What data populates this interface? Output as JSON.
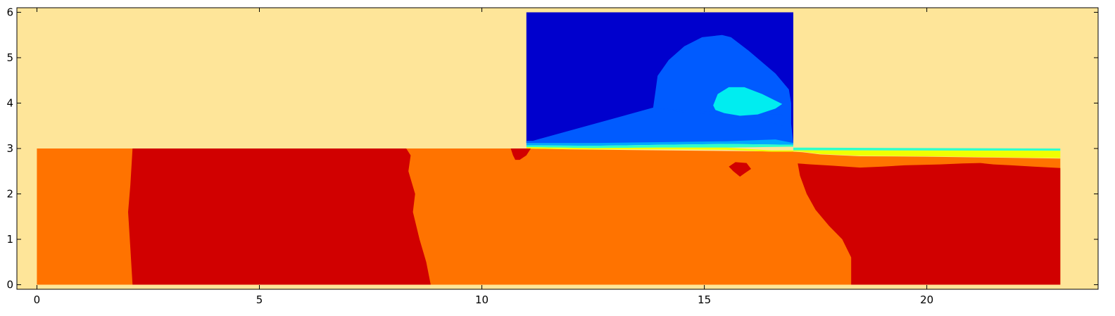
{
  "chart_data": {
    "type": "heatmap",
    "title": "",
    "xlabel": "",
    "ylabel": "",
    "xlim": [
      -0.45,
      23.85
    ],
    "ylim": [
      -0.1,
      6.1
    ],
    "x_ticks": [
      0,
      5,
      10,
      15,
      20
    ],
    "x_tick_labels": [
      "0",
      "5",
      "10",
      "15",
      "20"
    ],
    "y_ticks": [
      0,
      1,
      2,
      3,
      4,
      5,
      6
    ],
    "y_tick_labels": [
      "0",
      "1",
      "2",
      "3",
      "4",
      "5",
      "6"
    ],
    "grid": false,
    "legend": "none",
    "background_color": "#fee599",
    "regions": [
      {
        "name": "lower-layer-orange",
        "color": "#ff7300",
        "points": [
          [
            0,
            0
          ],
          [
            23,
            0
          ],
          [
            23,
            2.78
          ],
          [
            21.5,
            2.8
          ],
          [
            20,
            2.82
          ],
          [
            18.5,
            2.83
          ],
          [
            17.6,
            2.87
          ],
          [
            17.2,
            2.92
          ],
          [
            17.0,
            2.93
          ],
          [
            15,
            2.95
          ],
          [
            12,
            2.98
          ],
          [
            11.0,
            3.0
          ],
          [
            0,
            3.0
          ]
        ]
      },
      {
        "name": "left-red-zone",
        "color": "#d10000",
        "points": [
          [
            2.15,
            0
          ],
          [
            8.85,
            0
          ],
          [
            8.75,
            0.5
          ],
          [
            8.6,
            1.0
          ],
          [
            8.45,
            1.6
          ],
          [
            8.5,
            2.0
          ],
          [
            8.35,
            2.5
          ],
          [
            8.4,
            2.85
          ],
          [
            8.3,
            3.0
          ],
          [
            2.15,
            3.0
          ],
          [
            2.1,
            2.2
          ],
          [
            2.05,
            1.6
          ],
          [
            2.1,
            0.8
          ]
        ]
      },
      {
        "name": "right-red-zone",
        "color": "#d10000",
        "points": [
          [
            18.3,
            0
          ],
          [
            23,
            0
          ],
          [
            23,
            2.57
          ],
          [
            22.4,
            2.6
          ],
          [
            21.9,
            2.63
          ],
          [
            21.5,
            2.65
          ],
          [
            21.2,
            2.68
          ],
          [
            20.8,
            2.67
          ],
          [
            20.3,
            2.65
          ],
          [
            19.5,
            2.63
          ],
          [
            19.0,
            2.6
          ],
          [
            18.5,
            2.58
          ],
          [
            17.9,
            2.62
          ],
          [
            17.4,
            2.65
          ],
          [
            17.1,
            2.67
          ],
          [
            17.15,
            2.4
          ],
          [
            17.3,
            2.0
          ],
          [
            17.5,
            1.65
          ],
          [
            17.8,
            1.3
          ],
          [
            18.1,
            1.0
          ],
          [
            18.3,
            0.6
          ]
        ]
      },
      {
        "name": "red-blob-left",
        "color": "#d10000",
        "points": [
          [
            10.65,
            3.0
          ],
          [
            11.1,
            3.0
          ],
          [
            11.0,
            2.85
          ],
          [
            10.85,
            2.75
          ],
          [
            10.75,
            2.75
          ],
          [
            10.7,
            2.85
          ]
        ]
      },
      {
        "name": "red-blob-right",
        "color": "#d10000",
        "points": [
          [
            15.7,
            2.7
          ],
          [
            15.95,
            2.68
          ],
          [
            16.05,
            2.55
          ],
          [
            15.9,
            2.45
          ],
          [
            15.8,
            2.38
          ],
          [
            15.65,
            2.5
          ],
          [
            15.55,
            2.6
          ]
        ]
      },
      {
        "name": "right-cyan-band",
        "color": "#2fffc9",
        "points": [
          [
            17.0,
            3.02
          ],
          [
            23,
            3.0
          ],
          [
            23,
            2.95
          ],
          [
            17.0,
            2.96
          ]
        ]
      },
      {
        "name": "right-yellow-band",
        "color": "#f0ff00",
        "points": [
          [
            17.0,
            2.96
          ],
          [
            23,
            2.95
          ],
          [
            23,
            2.79
          ],
          [
            21.5,
            2.81
          ],
          [
            20,
            2.83
          ],
          [
            18.5,
            2.84
          ],
          [
            17.6,
            2.88
          ],
          [
            17.2,
            2.93
          ],
          [
            17.0,
            2.94
          ]
        ]
      },
      {
        "name": "block-dark-blue",
        "color": "#0000cd",
        "points": [
          [
            11.0,
            3.12
          ],
          [
            17.0,
            3.12
          ],
          [
            17.0,
            6.0
          ],
          [
            11.0,
            6.0
          ]
        ]
      },
      {
        "name": "block-medium-blue",
        "color": "#005bff",
        "points": [
          [
            13.85,
            3.9
          ],
          [
            13.9,
            4.25
          ],
          [
            13.95,
            4.6
          ],
          [
            14.2,
            4.95
          ],
          [
            14.55,
            5.25
          ],
          [
            14.95,
            5.45
          ],
          [
            15.4,
            5.5
          ],
          [
            15.6,
            5.45
          ],
          [
            16.0,
            5.15
          ],
          [
            16.6,
            4.65
          ],
          [
            16.9,
            4.3
          ],
          [
            16.95,
            4.0
          ],
          [
            16.95,
            3.55
          ],
          [
            17.0,
            3.12
          ],
          [
            11.0,
            3.12
          ],
          [
            11.0,
            3.17
          ],
          [
            12.0,
            3.18
          ],
          [
            13.5,
            3.23
          ],
          [
            15.0,
            3.35
          ],
          [
            16.4,
            3.38
          ],
          [
            16.4,
            3.28
          ],
          [
            15.0,
            3.28
          ],
          [
            13.5,
            3.2
          ],
          [
            12.0,
            3.14
          ],
          [
            11.0,
            3.13
          ]
        ]
      },
      {
        "name": "block-medium-blue-upper",
        "color": "#005bff",
        "points": [
          [
            13.85,
            3.9
          ],
          [
            14.5,
            3.8
          ],
          [
            15.5,
            3.72
          ],
          [
            16.4,
            3.6
          ],
          [
            16.75,
            3.5
          ],
          [
            16.8,
            3.6
          ],
          [
            16.75,
            3.75
          ],
          [
            16.2,
            3.75
          ],
          [
            15.0,
            3.82
          ],
          [
            14.0,
            3.88
          ]
        ]
      },
      {
        "name": "block-cyan-eddy",
        "color": "#00edf0",
        "points": [
          [
            15.2,
            3.95
          ],
          [
            15.3,
            4.2
          ],
          [
            15.55,
            4.35
          ],
          [
            15.9,
            4.35
          ],
          [
            16.3,
            4.2
          ],
          [
            16.75,
            3.98
          ],
          [
            16.6,
            3.88
          ],
          [
            16.2,
            3.75
          ],
          [
            15.8,
            3.72
          ],
          [
            15.45,
            3.78
          ],
          [
            15.25,
            3.85
          ]
        ]
      },
      {
        "name": "block-light-blue-band",
        "color": "#00a8ff",
        "points": [
          [
            11.0,
            3.12
          ],
          [
            12.5,
            3.12
          ],
          [
            14.0,
            3.14
          ],
          [
            15.5,
            3.16
          ],
          [
            16.6,
            3.2
          ],
          [
            17.0,
            3.12
          ],
          [
            17.0,
            3.08
          ],
          [
            15.5,
            3.1
          ],
          [
            14.0,
            3.08
          ],
          [
            12.5,
            3.06
          ],
          [
            11.0,
            3.07
          ]
        ]
      },
      {
        "name": "block-cyan-band",
        "color": "#2fffc9",
        "points": [
          [
            11.0,
            3.07
          ],
          [
            12.5,
            3.06
          ],
          [
            14.0,
            3.08
          ],
          [
            15.5,
            3.1
          ],
          [
            17.0,
            3.08
          ],
          [
            17.0,
            3.04
          ],
          [
            15.5,
            3.02
          ],
          [
            14.0,
            3.02
          ],
          [
            12.5,
            3.01
          ],
          [
            11.0,
            3.03
          ]
        ]
      },
      {
        "name": "block-yellow-band",
        "color": "#f0ff00",
        "points": [
          [
            11.0,
            3.03
          ],
          [
            12.5,
            3.01
          ],
          [
            14.0,
            3.02
          ],
          [
            15.5,
            3.02
          ],
          [
            16.5,
            2.96
          ],
          [
            17.0,
            2.96
          ],
          [
            17.0,
            2.93
          ],
          [
            16.5,
            2.93
          ],
          [
            15.5,
            2.97
          ],
          [
            14.0,
            2.98
          ],
          [
            12.5,
            2.98
          ],
          [
            11.0,
            3.0
          ]
        ]
      }
    ]
  }
}
